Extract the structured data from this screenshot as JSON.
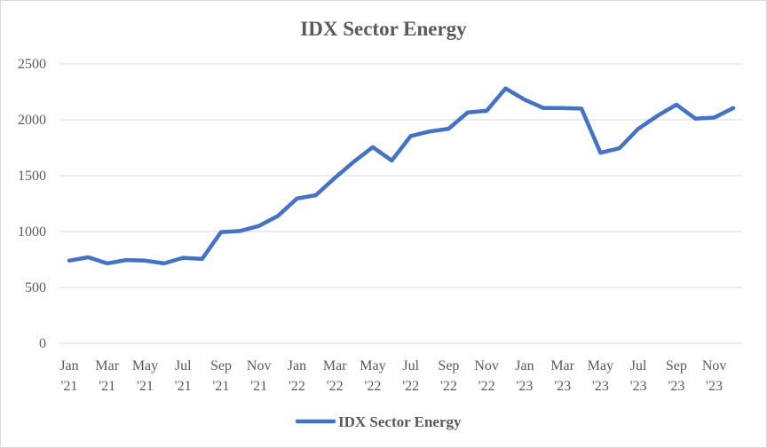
{
  "chart_data": {
    "type": "line",
    "title": "IDX Sector Energy",
    "xlabel": "",
    "ylabel": "",
    "ylim": [
      0,
      2500
    ],
    "yticks": [
      0,
      500,
      1000,
      1500,
      2000,
      2500
    ],
    "grid": true,
    "legend_position": "bottom",
    "x_tick_labels": [
      {
        "month": "Jan",
        "year": "'21"
      },
      {
        "month": "Mar",
        "year": "'21"
      },
      {
        "month": "May",
        "year": "'21"
      },
      {
        "month": "Jul",
        "year": "'21"
      },
      {
        "month": "Sep",
        "year": "'21"
      },
      {
        "month": "Nov",
        "year": "'21"
      },
      {
        "month": "Jan",
        "year": "'22"
      },
      {
        "month": "Mar",
        "year": "'22"
      },
      {
        "month": "May",
        "year": "'22"
      },
      {
        "month": "Jul",
        "year": "'22"
      },
      {
        "month": "Sep",
        "year": "'22"
      },
      {
        "month": "Nov",
        "year": "'22"
      },
      {
        "month": "Jan",
        "year": "'23"
      },
      {
        "month": "Mar",
        "year": "'23"
      },
      {
        "month": "May",
        "year": "'23"
      },
      {
        "month": "Jul",
        "year": "'23"
      },
      {
        "month": "Sep",
        "year": "'23"
      },
      {
        "month": "Nov",
        "year": "'23"
      }
    ],
    "series": [
      {
        "name": "IDX Sector Energy",
        "color": "#4472c4",
        "values": [
          740,
          770,
          715,
          745,
          740,
          715,
          765,
          755,
          995,
          1005,
          1050,
          1140,
          1295,
          1325,
          1480,
          1625,
          1755,
          1635,
          1855,
          1895,
          1920,
          2065,
          2080,
          2280,
          2180,
          2105,
          2105,
          2100,
          1705,
          1745,
          1920,
          2035,
          2135,
          2010,
          2020,
          2105
        ]
      }
    ]
  }
}
